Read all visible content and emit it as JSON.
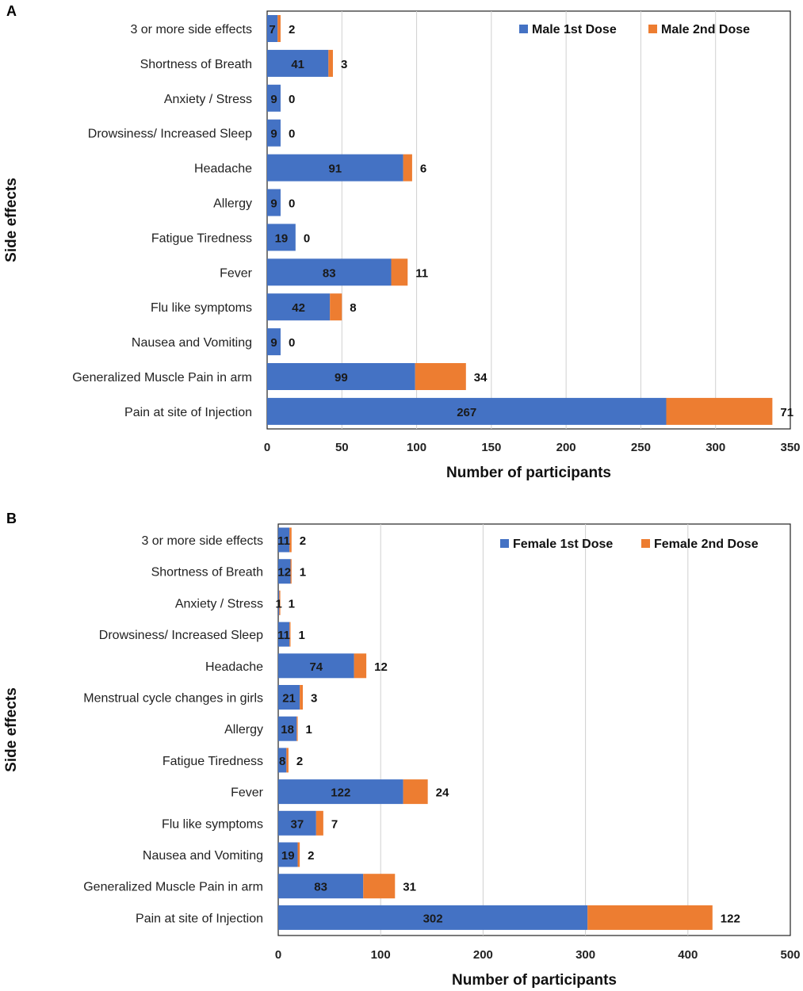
{
  "chart_data": [
    {
      "type": "bar",
      "stacked": true,
      "orientation": "horizontal",
      "panel": "A",
      "xlabel": "Number of participants",
      "ylabel": "Side effects",
      "xlim": [
        0,
        350
      ],
      "xticks": [
        0,
        50,
        100,
        150,
        200,
        250,
        300,
        350
      ],
      "grid": true,
      "legend_position": "top-right",
      "categories": [
        "3 or more side effects",
        "Shortness of Breath",
        "Anxiety / Stress",
        "Drowsiness/ Increased Sleep",
        "Headache",
        "Allergy",
        "Fatigue Tiredness",
        "Fever",
        "Flu like symptoms",
        "Nausea and Vomiting",
        "Generalized Muscle Pain in arm",
        "Pain at site of Injection"
      ],
      "series": [
        {
          "name": "Male 1st Dose",
          "color": "#4472C4",
          "values": [
            7,
            41,
            9,
            9,
            91,
            9,
            19,
            83,
            42,
            9,
            99,
            267
          ]
        },
        {
          "name": "Male 2nd Dose",
          "color": "#ED7D31",
          "values": [
            2,
            3,
            0,
            0,
            6,
            0,
            0,
            11,
            8,
            0,
            34,
            71
          ]
        }
      ]
    },
    {
      "type": "bar",
      "stacked": true,
      "orientation": "horizontal",
      "panel": "B",
      "xlabel": "Number of participants",
      "ylabel": "Side effects",
      "xlim": [
        0,
        500
      ],
      "xticks": [
        0,
        100,
        200,
        300,
        400,
        500
      ],
      "grid": true,
      "legend_position": "top-right",
      "categories": [
        "3 or more side effects",
        "Shortness of Breath",
        "Anxiety / Stress",
        "Drowsiness/ Increased Sleep",
        "Headache",
        "Menstrual cycle changes in girls",
        "Allergy",
        "Fatigue Tiredness",
        "Fever",
        "Flu like symptoms",
        "Nausea and Vomiting",
        "Generalized Muscle Pain in arm",
        "Pain at site of Injection"
      ],
      "series": [
        {
          "name": "Female 1st Dose",
          "color": "#4472C4",
          "values": [
            11,
            12,
            1,
            11,
            74,
            21,
            18,
            8,
            122,
            37,
            19,
            83,
            302
          ]
        },
        {
          "name": "Female 2nd Dose",
          "color": "#ED7D31",
          "values": [
            2,
            1,
            1,
            1,
            12,
            3,
            1,
            2,
            24,
            7,
            2,
            31,
            122
          ]
        }
      ]
    }
  ]
}
